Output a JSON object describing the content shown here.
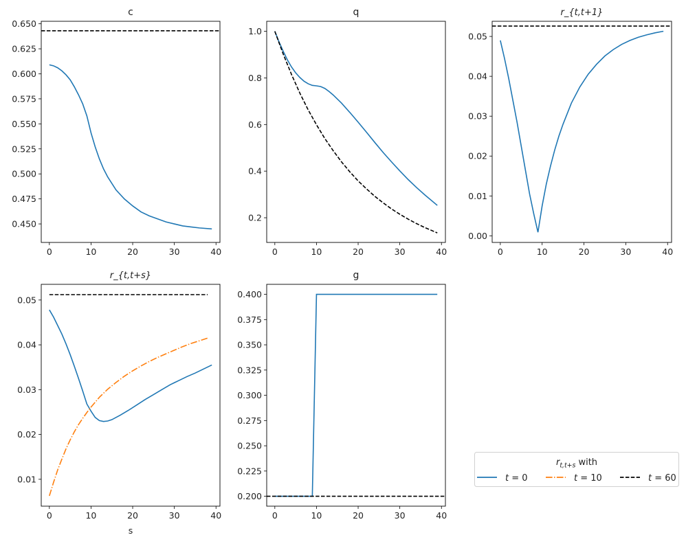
{
  "chart_data": [
    {
      "type": "line",
      "title": "c",
      "xlabel": "",
      "xlim": [
        -1.95,
        40.95
      ],
      "ylim": [
        0.4315,
        0.6525
      ],
      "xticks": [
        0,
        10,
        20,
        30,
        40
      ],
      "yticks": [
        "0.450",
        "0.475",
        "0.500",
        "0.525",
        "0.550",
        "0.575",
        "0.600",
        "0.625",
        "0.650"
      ],
      "series": [
        {
          "style": "solid",
          "color": "#1f77b4",
          "x": [
            0,
            1,
            2,
            3,
            4,
            5,
            6,
            7,
            8,
            9,
            10,
            11,
            12,
            13,
            14,
            16,
            18,
            20,
            22,
            24,
            26,
            28,
            30,
            32,
            34,
            36,
            39
          ],
          "y": [
            0.609,
            0.608,
            0.606,
            0.603,
            0.599,
            0.594,
            0.587,
            0.579,
            0.57,
            0.558,
            0.541,
            0.527,
            0.515,
            0.505,
            0.497,
            0.484,
            0.475,
            0.468,
            0.462,
            0.458,
            0.455,
            0.452,
            0.45,
            0.448,
            0.447,
            0.446,
            0.445
          ]
        },
        {
          "style": "dashed",
          "color": "#000000",
          "hline": 0.643
        }
      ]
    },
    {
      "type": "line",
      "title": "q",
      "xlabel": "",
      "xlim": [
        -1.95,
        40.95
      ],
      "ylim": [
        0.094,
        1.043
      ],
      "xticks": [
        0,
        10,
        20,
        30,
        40
      ],
      "yticks": [
        "0.2",
        "0.4",
        "0.6",
        "0.8",
        "1.0"
      ],
      "series": [
        {
          "style": "solid",
          "color": "#1f77b4",
          "x": [
            0,
            1,
            2,
            3,
            4,
            5,
            6,
            7,
            8,
            9,
            10,
            11,
            12,
            13,
            14,
            16,
            18,
            20,
            22,
            24,
            26,
            28,
            30,
            32,
            34,
            36,
            39
          ],
          "y": [
            1.0,
            0.955,
            0.915,
            0.878,
            0.847,
            0.822,
            0.802,
            0.786,
            0.775,
            0.768,
            0.766,
            0.763,
            0.755,
            0.742,
            0.727,
            0.692,
            0.652,
            0.61,
            0.567,
            0.523,
            0.48,
            0.44,
            0.401,
            0.364,
            0.33,
            0.298,
            0.253
          ]
        },
        {
          "style": "dashed",
          "color": "#000000",
          "x": [
            0,
            2,
            4,
            6,
            8,
            10,
            12,
            14,
            16,
            18,
            20,
            22,
            24,
            26,
            28,
            30,
            32,
            34,
            36,
            39
          ],
          "y": [
            1.0,
            0.903,
            0.815,
            0.735,
            0.663,
            0.599,
            0.54,
            0.488,
            0.44,
            0.397,
            0.358,
            0.324,
            0.292,
            0.264,
            0.238,
            0.215,
            0.194,
            0.175,
            0.158,
            0.135
          ]
        }
      ]
    },
    {
      "type": "line",
      "title": "r_{t,t+1}",
      "xlabel": "",
      "xlim": [
        -1.95,
        40.95
      ],
      "ylim": [
        -0.00166,
        0.0538
      ],
      "xticks": [
        0,
        10,
        20,
        30,
        40
      ],
      "yticks": [
        "0.00",
        "0.01",
        "0.02",
        "0.03",
        "0.04",
        "0.05"
      ],
      "series": [
        {
          "style": "solid",
          "color": "#1f77b4",
          "x": [
            0,
            1,
            2,
            3,
            4,
            5,
            6,
            7,
            8,
            9,
            10,
            11,
            12,
            13,
            14,
            15,
            17,
            19,
            21,
            23,
            25,
            27,
            29,
            31,
            33,
            35,
            37,
            39
          ],
          "y": [
            0.049,
            0.0445,
            0.0395,
            0.034,
            0.0285,
            0.0225,
            0.0165,
            0.0105,
            0.0055,
            0.0009,
            0.0075,
            0.013,
            0.0175,
            0.0215,
            0.025,
            0.028,
            0.0333,
            0.0373,
            0.0405,
            0.043,
            0.0451,
            0.0467,
            0.048,
            0.049,
            0.0498,
            0.0504,
            0.0509,
            0.0513
          ]
        },
        {
          "style": "dashed",
          "color": "#000000",
          "hline": 0.0526
        }
      ]
    },
    {
      "type": "line",
      "title": "r_{t,t+s}",
      "xlabel": "s",
      "xlim": [
        -1.95,
        40.95
      ],
      "ylim": [
        0.004,
        0.0535
      ],
      "xticks": [
        0,
        10,
        20,
        30,
        40
      ],
      "yticks": [
        "0.01",
        "0.02",
        "0.03",
        "0.04",
        "0.05"
      ],
      "series": [
        {
          "name": "t = 0",
          "style": "solid",
          "color": "#1f77b4",
          "x": [
            0,
            1,
            2,
            3,
            4,
            5,
            6,
            7,
            8,
            9,
            10,
            11,
            12,
            13,
            14,
            15,
            17,
            19,
            21,
            23,
            25,
            27,
            29,
            31,
            33,
            35,
            37,
            39
          ],
          "y": [
            0.0478,
            0.0462,
            0.0443,
            0.0424,
            0.0402,
            0.0378,
            0.0352,
            0.0325,
            0.0297,
            0.0268,
            0.0252,
            0.0238,
            0.0231,
            0.0229,
            0.023,
            0.0233,
            0.0243,
            0.0254,
            0.0266,
            0.0278,
            0.0289,
            0.03,
            0.0311,
            0.032,
            0.0329,
            0.0337,
            0.0346,
            0.0355
          ]
        },
        {
          "name": "t = 10",
          "style": "dashdot",
          "color": "#ff7f0e",
          "x": [
            0,
            1,
            2,
            3,
            4,
            5,
            6,
            7,
            8,
            9,
            10,
            12,
            14,
            16,
            18,
            20,
            22,
            24,
            26,
            28,
            30,
            32,
            34,
            36,
            38
          ],
          "y": [
            0.0063,
            0.0093,
            0.0121,
            0.0145,
            0.0168,
            0.0188,
            0.0206,
            0.0222,
            0.0236,
            0.0249,
            0.0261,
            0.0283,
            0.0301,
            0.0316,
            0.033,
            0.0342,
            0.0353,
            0.0363,
            0.0372,
            0.038,
            0.0388,
            0.0396,
            0.0403,
            0.0409,
            0.0415
          ]
        },
        {
          "name": "t = 60",
          "style": "dashed",
          "color": "#000000",
          "x": [
            0,
            38
          ],
          "y": [
            0.0512,
            0.0512
          ]
        }
      ]
    },
    {
      "type": "line",
      "title": "g",
      "xlabel": "",
      "xlim": [
        -1.95,
        40.95
      ],
      "ylim": [
        0.1902,
        0.4099
      ],
      "xticks": [
        0,
        10,
        20,
        30,
        40
      ],
      "yticks": [
        "0.200",
        "0.225",
        "0.250",
        "0.275",
        "0.300",
        "0.325",
        "0.350",
        "0.375",
        "0.400"
      ],
      "series": [
        {
          "style": "solid",
          "color": "#1f77b4",
          "x": [
            0,
            9,
            10,
            39
          ],
          "y": [
            0.2,
            0.2,
            0.4,
            0.4
          ]
        },
        {
          "style": "dashed",
          "color": "#000000",
          "hline": 0.2
        }
      ]
    }
  ],
  "legend": {
    "title": "r_{t,t+s} with",
    "entries": [
      {
        "label": "t = 0",
        "style": "solid",
        "color": "#1f77b4"
      },
      {
        "label": "t = 10",
        "style": "dashdot",
        "color": "#ff7f0e"
      },
      {
        "label": "t = 60",
        "style": "dashed",
        "color": "#000000"
      }
    ]
  }
}
